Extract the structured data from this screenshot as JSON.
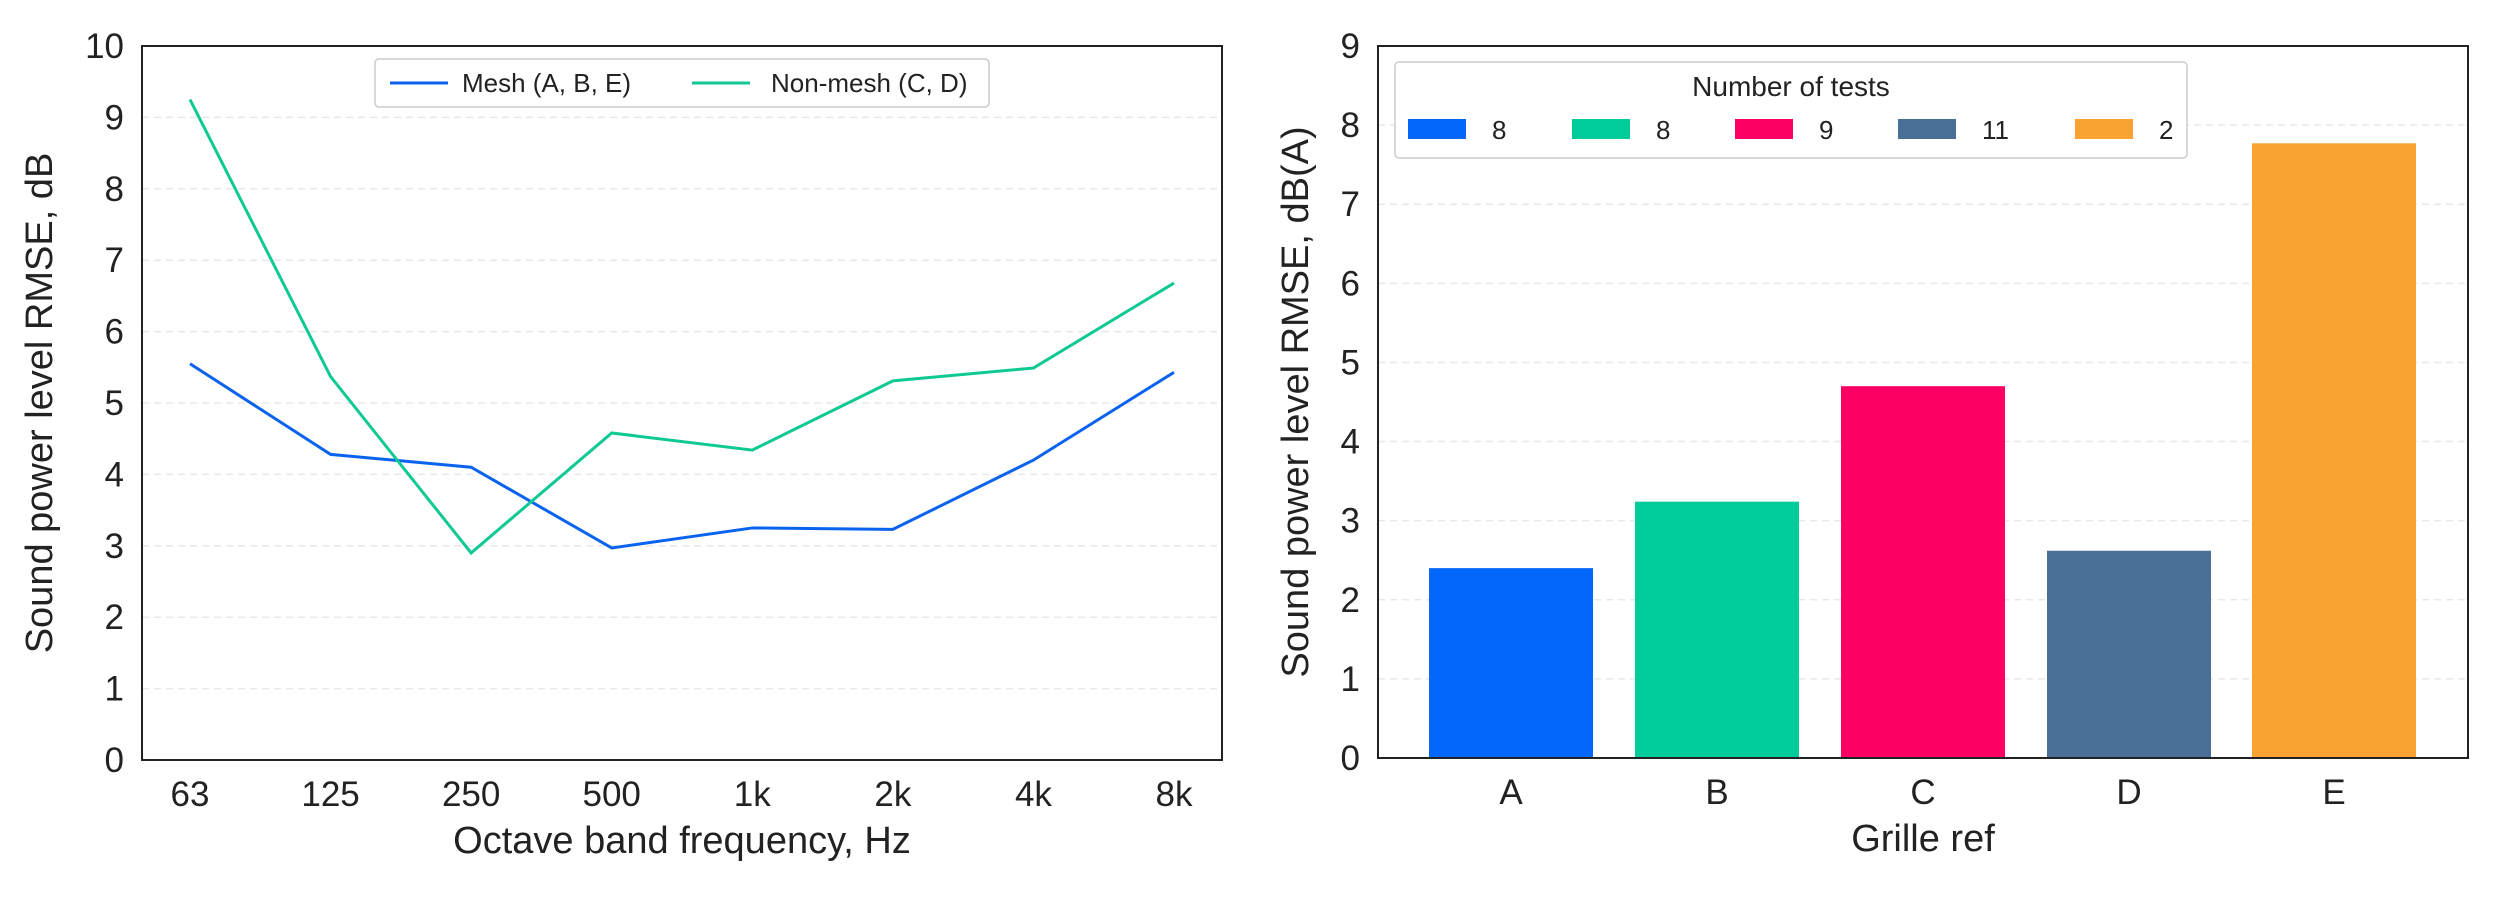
{
  "chart_data": [
    {
      "type": "line",
      "xlabel": "Octave band frequency, Hz",
      "ylabel": "Sound power level RMSE, dB",
      "categories": [
        "63",
        "125",
        "250",
        "500",
        "1k",
        "2k",
        "4k",
        "8k"
      ],
      "ylim": [
        0,
        10
      ],
      "yticks": [
        "0",
        "1",
        "2",
        "3",
        "4",
        "5",
        "6",
        "7",
        "8",
        "9",
        "10"
      ],
      "grid": true,
      "legend_position": "top-center",
      "series": [
        {
          "name": "Mesh (A, B, E)",
          "color": "#0a63ee",
          "values": [
            5.55,
            4.28,
            4.1,
            2.97,
            3.25,
            3.23,
            4.2,
            5.43
          ]
        },
        {
          "name": "Non-mesh (C, D)",
          "color": "#0ec993",
          "values": [
            9.25,
            5.37,
            2.9,
            4.58,
            4.34,
            5.31,
            5.49,
            6.68
          ]
        }
      ]
    },
    {
      "type": "bar",
      "xlabel": "Grille ref",
      "ylabel": "Sound power level RMSE, dB(A)",
      "categories": [
        "A",
        "B",
        "C",
        "D",
        "E"
      ],
      "values": [
        2.4,
        3.24,
        4.7,
        2.62,
        7.77
      ],
      "colors": [
        "#0467fc",
        "#00cc99",
        "#fe0064",
        "#4a6f97",
        "#f9a333"
      ],
      "ylim": [
        0,
        9
      ],
      "yticks": [
        "0",
        "1",
        "2",
        "3",
        "4",
        "5",
        "6",
        "7",
        "8",
        "9"
      ],
      "grid": true,
      "legend_position": "top-left",
      "legend_title": "Number of tests",
      "legend_entries": [
        "8",
        "8",
        "9",
        "11",
        "2"
      ]
    }
  ]
}
